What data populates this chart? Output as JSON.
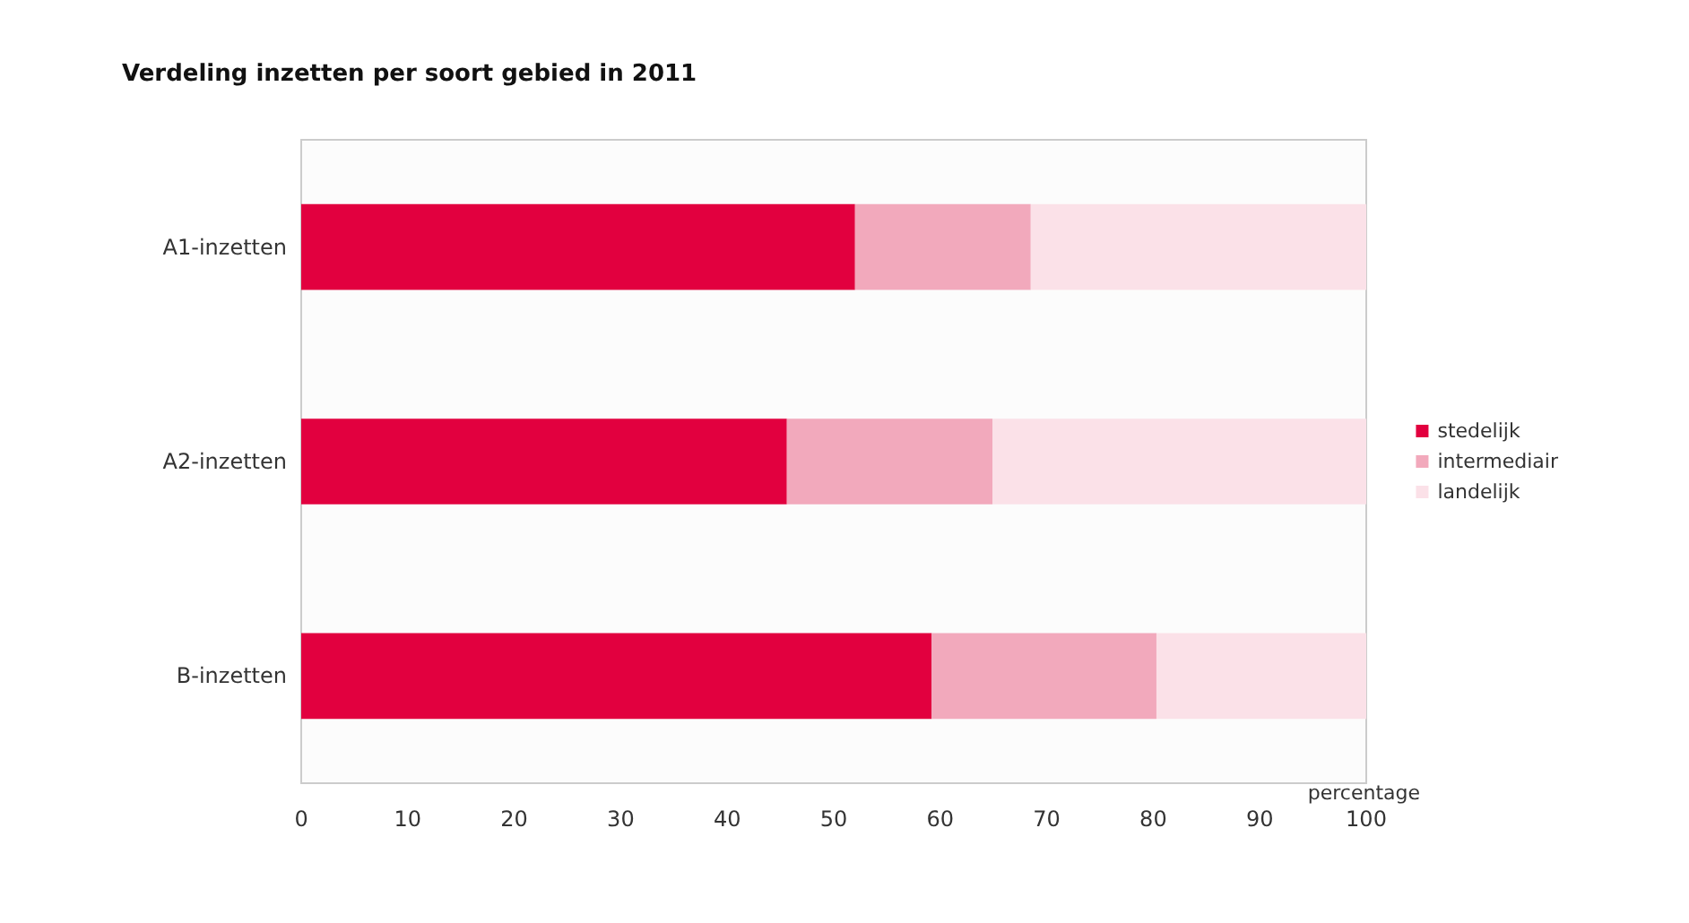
{
  "chart_data": {
    "type": "bar",
    "orientation": "horizontal",
    "stacked": true,
    "title": "Verdeling inzetten per soort gebied in 2011",
    "xlabel": "percentage",
    "categories": [
      "A1-inzetten",
      "A2-inzetten",
      "B-inzetten"
    ],
    "series": [
      {
        "name": "stedelijk",
        "color": "#e2003f",
        "values": [
          52,
          45.6,
          59.2
        ]
      },
      {
        "name": "intermediair",
        "color": "#f2a9bc",
        "values": [
          16.5,
          19.3,
          21.1
        ]
      },
      {
        "name": "landelijk",
        "color": "#fbe1e8",
        "values": [
          31.5,
          35.1,
          19.7
        ]
      }
    ],
    "xlim": [
      0,
      100
    ],
    "xticks": [
      0,
      10,
      20,
      30,
      40,
      50,
      60,
      70,
      80,
      90,
      100
    ],
    "grid": false,
    "legend": "right"
  }
}
